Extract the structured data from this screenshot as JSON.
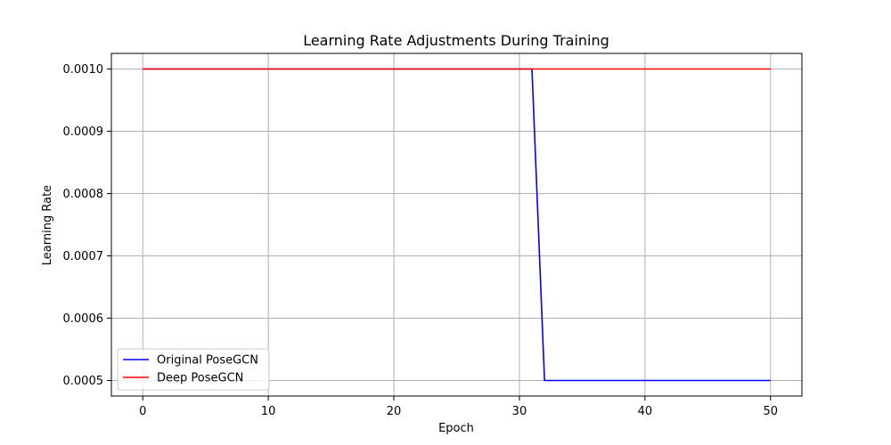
{
  "chart_data": {
    "type": "line",
    "title": "Learning Rate Adjustments During Training",
    "xlabel": "Epoch",
    "ylabel": "Learning Rate",
    "xlim": [
      -2.5,
      52.5
    ],
    "ylim": [
      0.000475,
      0.001025
    ],
    "x_ticks": [
      0,
      10,
      20,
      30,
      40,
      50
    ],
    "x_tick_labels": [
      "0",
      "10",
      "20",
      "30",
      "40",
      "50"
    ],
    "y_ticks": [
      0.0005,
      0.0006,
      0.0007,
      0.0008,
      0.0009,
      0.001
    ],
    "y_tick_labels": [
      "0.0005",
      "0.0006",
      "0.0007",
      "0.0008",
      "0.0009",
      "0.0010"
    ],
    "grid": true,
    "legend_position": "bottom-left",
    "series": [
      {
        "name": "Original PoseGCN",
        "color": "#0000ff",
        "x": [
          0,
          31,
          32,
          50
        ],
        "y": [
          0.001,
          0.001,
          0.0005,
          0.0005
        ]
      },
      {
        "name": "Deep PoseGCN",
        "color": "#ff0000",
        "x": [
          0,
          31,
          32,
          50
        ],
        "y": [
          0.001,
          0.001,
          0.001,
          0.001
        ]
      }
    ]
  }
}
